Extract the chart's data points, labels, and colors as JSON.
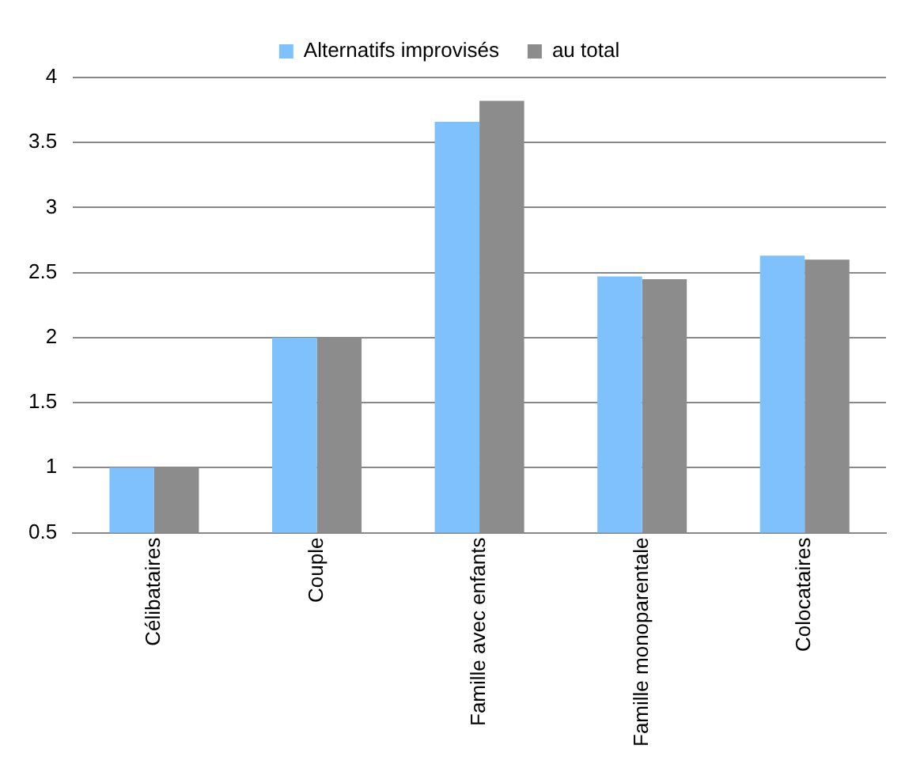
{
  "chart_data": {
    "type": "bar",
    "categories": [
      "Célibataires",
      "Couple",
      "Famille avec enfants",
      "Famille monoparentale",
      "Colocataires"
    ],
    "series": [
      {
        "name": "Alternatifs improvisés",
        "color": "#7fc1fd",
        "values": [
          1,
          2,
          3.66,
          2.47,
          2.63
        ]
      },
      {
        "name": "au total",
        "color": "#8c8c8c",
        "values": [
          1,
          2,
          3.82,
          2.45,
          2.6
        ]
      }
    ],
    "ylim": [
      0.5,
      4
    ],
    "yticks": [
      0.5,
      1,
      1.5,
      2,
      2.5,
      3,
      3.5,
      4
    ],
    "grid": "y",
    "legend": "top"
  }
}
